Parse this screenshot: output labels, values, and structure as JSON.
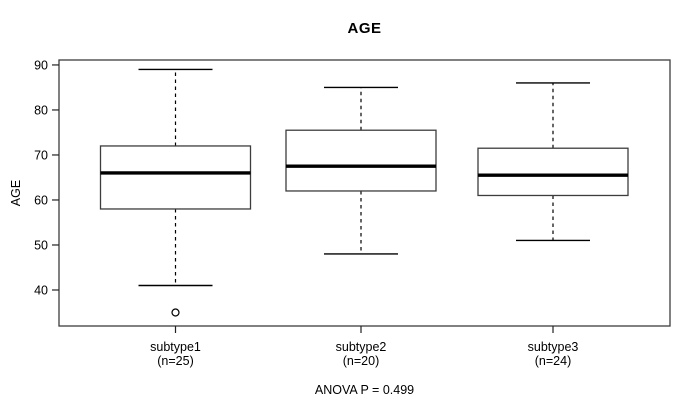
{
  "figure": {
    "title": "AGE",
    "y_axis_label": "AGE",
    "annotation": "ANOVA P = 0.499"
  },
  "chart_data": {
    "type": "boxplot",
    "title": "AGE",
    "ylabel": "AGE",
    "xlabel": "",
    "ylim": [
      32,
      91.1
    ],
    "yticks": [
      40,
      50,
      60,
      70,
      80,
      90
    ],
    "grid": false,
    "background": "#ffffff",
    "line_color": "#000000",
    "frame_color": "#3d3d3d",
    "groups": [
      {
        "label": "subtype1",
        "sublabel": "(n=25)",
        "n": 25,
        "whisker_low": 41,
        "q1": 58,
        "median": 66,
        "q3": 72,
        "whisker_high": 89,
        "outliers": [
          35
        ]
      },
      {
        "label": "subtype2",
        "sublabel": "(n=20)",
        "n": 20,
        "whisker_low": 48,
        "q1": 62,
        "median": 67.5,
        "q3": 75.5,
        "whisker_high": 85,
        "outliers": []
      },
      {
        "label": "subtype3",
        "sublabel": "(n=24)",
        "n": 24,
        "whisker_low": 51,
        "q1": 61,
        "median": 65.5,
        "q3": 71.5,
        "whisker_high": 86,
        "outliers": []
      }
    ],
    "annotation": "ANOVA P = 0.499"
  }
}
